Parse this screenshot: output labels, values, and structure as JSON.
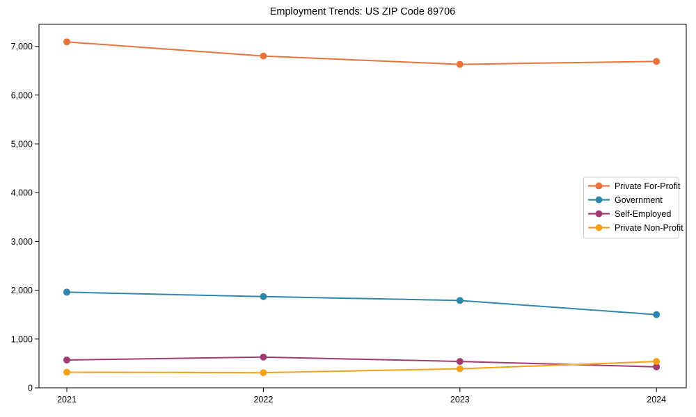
{
  "figure": {
    "background_color": "#ffffff",
    "axis_color": "#000000",
    "legend_border_color": "#cccccc"
  },
  "chart_data": {
    "type": "line",
    "title": "Employment Trends: US ZIP Code 89706",
    "xlabel": "",
    "ylabel": "",
    "x": [
      "2021",
      "2022",
      "2023",
      "2024"
    ],
    "yticks": [
      0,
      1000,
      2000,
      3000,
      4000,
      5000,
      6000,
      7000
    ],
    "ytick_format": "comma",
    "ylim": [
      0,
      7450
    ],
    "grid": false,
    "legend_position": "right-middle",
    "marker": "circle",
    "series": [
      {
        "name": "Private For-Profit",
        "color": "#E8743B",
        "values": [
          7090,
          6800,
          6630,
          6690
        ]
      },
      {
        "name": "Government",
        "color": "#2E86AB",
        "values": [
          1960,
          1870,
          1790,
          1500
        ]
      },
      {
        "name": "Self-Employed",
        "color": "#A23B72",
        "values": [
          570,
          630,
          540,
          430
        ]
      },
      {
        "name": "Private Non-Profit",
        "color": "#F5A01B",
        "values": [
          320,
          310,
          390,
          540
        ]
      }
    ]
  }
}
